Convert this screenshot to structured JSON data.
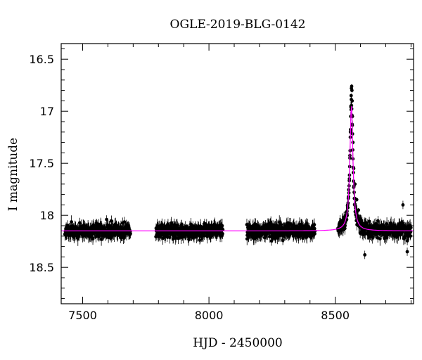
{
  "chart_data": {
    "type": "scatter",
    "title": "OGLE-2019-BLG-0142",
    "xlabel": "HJD - 2450000",
    "ylabel": "I magnitude",
    "xlim": [
      7415,
      8810
    ],
    "ylim": [
      18.85,
      16.35
    ],
    "y_inverted": true,
    "grid": false,
    "legend": "none",
    "x_ticks": [
      7500,
      8000,
      8500
    ],
    "y_ticks": [
      16.5,
      17,
      17.5,
      18,
      18.5
    ],
    "series": [
      {
        "kind": "points-with-errorbars",
        "color": "#000000",
        "seasons": [
          {
            "x_start": 7430,
            "x_end": 7690,
            "baseline": 18.15,
            "scatter": 0.06
          },
          {
            "x_start": 7790,
            "x_end": 8055,
            "baseline": 18.15,
            "scatter": 0.06
          },
          {
            "x_start": 8150,
            "x_end": 8420,
            "baseline": 18.15,
            "scatter": 0.06
          },
          {
            "x_start": 8510,
            "x_end": 8800,
            "baseline": 18.15,
            "scatter": 0.06
          }
        ],
        "peak_points": [
          {
            "x": 8556,
            "y": 17.65
          },
          {
            "x": 8558,
            "y": 17.45
          },
          {
            "x": 8560,
            "y": 17.2
          },
          {
            "x": 8562,
            "y": 16.95
          },
          {
            "x": 8563,
            "y": 16.85
          },
          {
            "x": 8564,
            "y": 16.78
          },
          {
            "x": 8565,
            "y": 16.76
          },
          {
            "x": 8566,
            "y": 16.8
          },
          {
            "x": 8567,
            "y": 16.9
          },
          {
            "x": 8568,
            "y": 17.05
          },
          {
            "x": 8570,
            "y": 17.3
          },
          {
            "x": 8573,
            "y": 17.55
          },
          {
            "x": 8578,
            "y": 17.7
          },
          {
            "x": 8585,
            "y": 17.85
          },
          {
            "x": 8592,
            "y": 17.95
          }
        ],
        "outliers": [
          {
            "x": 7595,
            "y": 18.04
          },
          {
            "x": 7680,
            "y": 18.1
          },
          {
            "x": 8598,
            "y": 18.09
          },
          {
            "x": 8617,
            "y": 18.38
          },
          {
            "x": 8768,
            "y": 17.9
          },
          {
            "x": 8785,
            "y": 18.35
          }
        ]
      },
      {
        "kind": "model-curve",
        "color": "#ff00ff",
        "baseline": 18.15,
        "peak_x": 8564,
        "peak_y": 16.93,
        "width": 9
      }
    ]
  }
}
